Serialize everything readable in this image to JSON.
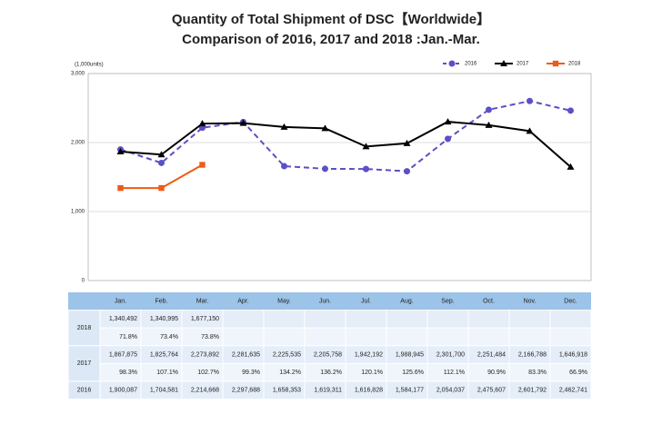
{
  "chart_data": {
    "type": "line",
    "title": "Quantity of Total Shipment of DSC【Worldwide】",
    "subtitle": "Comparison of 2016, 2017 and 2018 :Jan.-Mar.",
    "y_label": "(1,000units)",
    "categories": [
      "Jan.",
      "Feb.",
      "Mar.",
      "Apr.",
      "May.",
      "Jun.",
      "Jul.",
      "Aug.",
      "Sep.",
      "Oct.",
      "Nov.",
      "Dec."
    ],
    "ylim": [
      0,
      3000
    ],
    "yticks": [
      0,
      {
        "value": 1000,
        "label": "1,000"
      },
      {
        "value": 2000,
        "label": "2,000"
      },
      {
        "value": 3000,
        "label": "3,000"
      }
    ],
    "grid": true,
    "legend": "top-right",
    "series": [
      {
        "name": "2016",
        "color": "#5b4fc9",
        "dashed": true,
        "marker": "circle",
        "values": [
          1900.087,
          1704.581,
          2214.668,
          2297.688,
          1658.353,
          1619.311,
          1616.828,
          1584.177,
          2054.037,
          2475.607,
          2601.792,
          2462.741
        ],
        "value_labels": [
          "1,900,087",
          "1,704,581",
          "2,214,668",
          "2,297,688",
          "1,658,353",
          "1,619,311",
          "1,616,828",
          "1,584,177",
          "2,054,037",
          "2,475,607",
          "2,601,792",
          "2,462,741"
        ]
      },
      {
        "name": "2017",
        "color": "#000000",
        "dashed": false,
        "marker": "triangle",
        "values": [
          1867.875,
          1825.764,
          2273.892,
          2281.635,
          2225.535,
          2205.758,
          1942.192,
          1988.945,
          2301.7,
          2251.484,
          2166.788,
          1646.918
        ],
        "value_labels": [
          "1,867,875",
          "1,825,764",
          "2,273,892",
          "2,281,635",
          "2,225,535",
          "2,205,758",
          "1,942,192",
          "1,988,945",
          "2,301,700",
          "2,251,484",
          "2,166,788",
          "1,646,918"
        ],
        "ratio_labels": [
          "98.3%",
          "107.1%",
          "102.7%",
          "99.3%",
          "134.2%",
          "136.2%",
          "120.1%",
          "125.6%",
          "112.1%",
          "90.9%",
          "83.3%",
          "66.9%"
        ]
      },
      {
        "name": "2018",
        "color": "#f05a16",
        "dashed": false,
        "marker": "square",
        "values": [
          1340.492,
          1340.995,
          1677.15,
          null,
          null,
          null,
          null,
          null,
          null,
          null,
          null,
          null
        ],
        "value_labels": [
          "1,340,492",
          "1,340,995",
          "1,677,150",
          null,
          null,
          null,
          null,
          null,
          null,
          null,
          null,
          null
        ],
        "ratio_labels": [
          "71.8%",
          "73.4%",
          "73.8%",
          null,
          null,
          null,
          null,
          null,
          null,
          null,
          null,
          null
        ]
      }
    ]
  }
}
